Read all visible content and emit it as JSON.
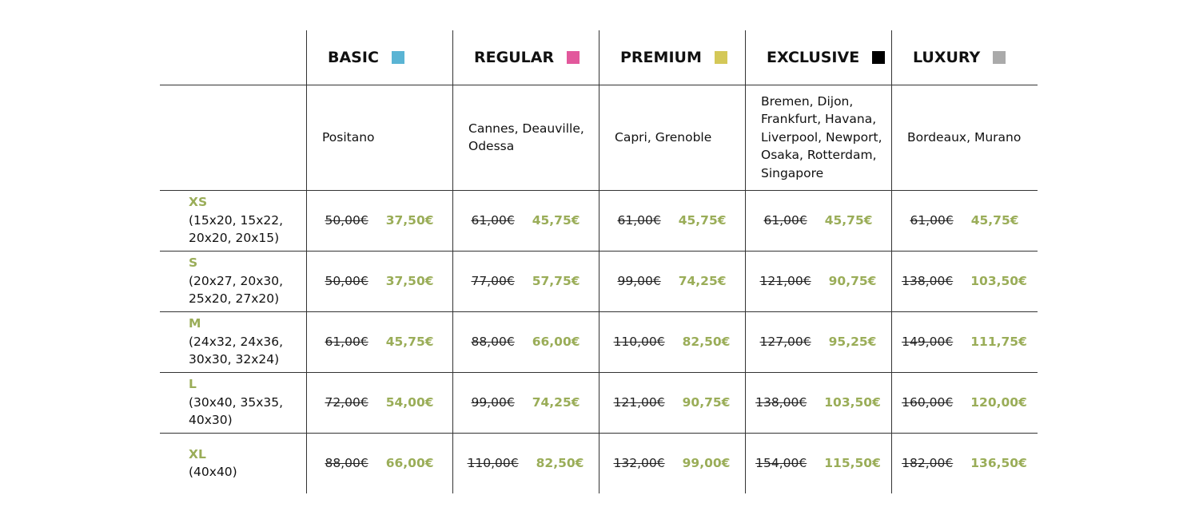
{
  "columns": [
    {
      "name": "BASIC",
      "color": "#5ab4d4",
      "cities": "Positano"
    },
    {
      "name": "REGULAR",
      "color": "#e2589c",
      "cities": "Cannes, Deauville, Odessa"
    },
    {
      "name": "PREMIUM",
      "color": "#d4c858",
      "cities": "Capri, Grenoble"
    },
    {
      "name": "EXCLUSIVE",
      "color": "#000000",
      "cities": "Bremen, Dijon, Frankfurt, Havana, Liverpool, Newport, Osaka, Rotterdam, Singapore"
    },
    {
      "name": "LUXURY",
      "color": "#aaaaaa",
      "cities": "Bordeaux, Murano"
    }
  ],
  "sizes": [
    {
      "label": "XS",
      "dimensions": "(15x20, 15x22, 20x20, 20x15)",
      "prices": [
        {
          "old": "50,00€",
          "new": "37,50€"
        },
        {
          "old": "61,00€",
          "new": "45,75€"
        },
        {
          "old": "61,00€",
          "new": "45,75€"
        },
        {
          "old": "61,00€",
          "new": "45,75€"
        },
        {
          "old": "61,00€",
          "new": "45,75€"
        }
      ]
    },
    {
      "label": "S",
      "dimensions": "(20x27, 20x30, 25x20, 27x20)",
      "prices": [
        {
          "old": "50,00€",
          "new": "37,50€"
        },
        {
          "old": "77,00€",
          "new": "57,75€"
        },
        {
          "old": "99,00€",
          "new": "74,25€"
        },
        {
          "old": "121,00€",
          "new": "90,75€"
        },
        {
          "old": "138,00€",
          "new": "103,50€"
        }
      ]
    },
    {
      "label": "M",
      "dimensions": "(24x32, 24x36, 30x30, 32x24)",
      "prices": [
        {
          "old": "61,00€",
          "new": "45,75€"
        },
        {
          "old": "88,00€",
          "new": "66,00€"
        },
        {
          "old": "110,00€",
          "new": "82,50€"
        },
        {
          "old": "127,00€",
          "new": "95,25€"
        },
        {
          "old": "149,00€",
          "new": "111,75€"
        }
      ]
    },
    {
      "label": "L",
      "dimensions": "(30x40, 35x35, 40x30)",
      "prices": [
        {
          "old": "72,00€",
          "new": "54,00€"
        },
        {
          "old": "99,00€",
          "new": "74,25€"
        },
        {
          "old": "121,00€",
          "new": "90,75€"
        },
        {
          "old": "138,00€",
          "new": "103,50€"
        },
        {
          "old": "160,00€",
          "new": "120,00€"
        }
      ]
    },
    {
      "label": "XL",
      "dimensions": "(40x40)",
      "prices": [
        {
          "old": "88,00€",
          "new": "66,00€"
        },
        {
          "old": "110,00€",
          "new": "82,50€"
        },
        {
          "old": "132,00€",
          "new": "99,00€"
        },
        {
          "old": "154,00€",
          "new": "115,50€"
        },
        {
          "old": "182,00€",
          "new": "136,50€"
        }
      ]
    }
  ]
}
